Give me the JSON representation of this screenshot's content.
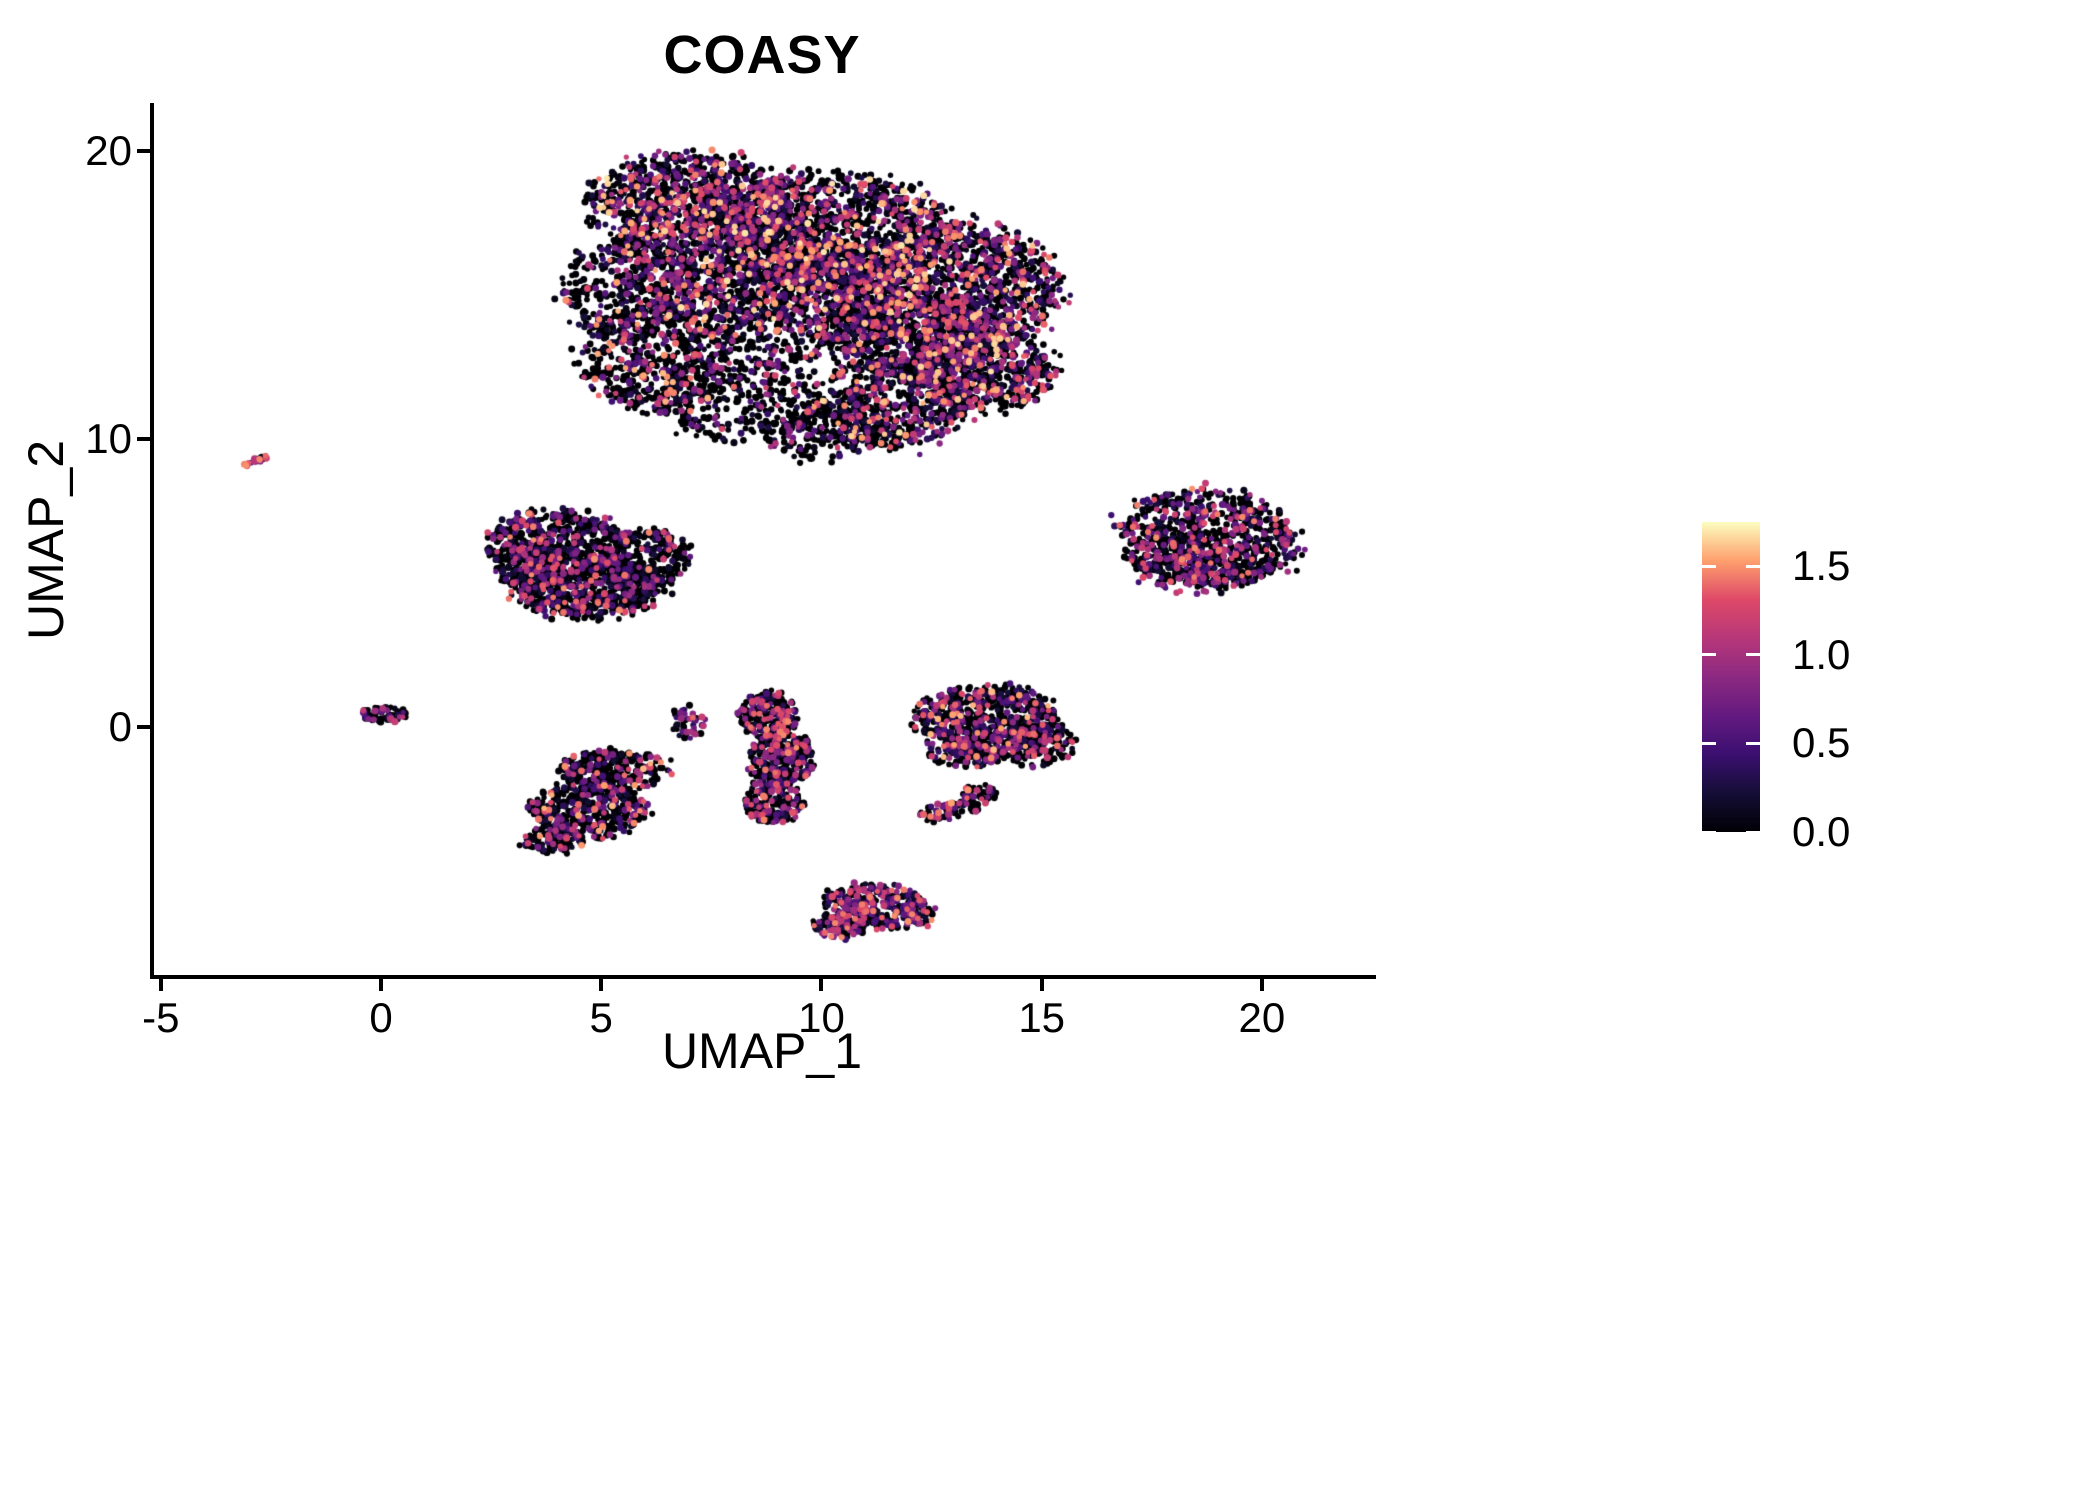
{
  "title": "COASY",
  "axes": {
    "x": {
      "label": "UMAP_1",
      "domain": [
        -5.2,
        22.5
      ],
      "ticks": [
        {
          "value": -5,
          "label": "-5"
        },
        {
          "value": 0,
          "label": "0"
        },
        {
          "value": 5,
          "label": "5"
        },
        {
          "value": 10,
          "label": "10"
        },
        {
          "value": 15,
          "label": "15"
        },
        {
          "value": 20,
          "label": "20"
        }
      ]
    },
    "y": {
      "label": "UMAP_2",
      "domain": [
        -8.6,
        21.6
      ],
      "ticks": [
        {
          "value": 0,
          "label": "0"
        },
        {
          "value": 10,
          "label": "10"
        },
        {
          "value": 20,
          "label": "20"
        }
      ]
    }
  },
  "legend": {
    "min": 0,
    "max": 1.75,
    "ticks": [
      {
        "value": 1.5,
        "label": "1.5"
      },
      {
        "value": 1.0,
        "label": "1.0"
      },
      {
        "value": 0.5,
        "label": "0.5"
      },
      {
        "value": 0.0,
        "label": "0.0"
      }
    ]
  },
  "colormap": {
    "name": "magma",
    "stops": [
      "#000004",
      "#140e36",
      "#3b0f70",
      "#641a80",
      "#8c2981",
      "#b73779",
      "#de4968",
      "#fe9f6d",
      "#fcfdbf"
    ]
  },
  "style": {
    "background": "#ffffff",
    "axis_color": "#000000",
    "point_radius_min": 2.6,
    "point_radius_max": 3.6
  },
  "chart_data": {
    "type": "scatter",
    "title": "COASY",
    "xlabel": "UMAP_1",
    "ylabel": "UMAP_2",
    "xlim": [
      -5.2,
      22.5
    ],
    "ylim": [
      -8.6,
      21.6
    ],
    "color_gene": "COASY",
    "color_range": [
      0,
      1.75
    ],
    "seed": 42,
    "clusters": [
      {
        "name": "upper-main-mass",
        "expr": {
          "p0": 0.45,
          "vmax": 1.7,
          "skew": 1.8
        },
        "blobs": [
          {
            "cx": 7.0,
            "cy": 18.2,
            "rx": 2.3,
            "ry": 1.7,
            "n": 900
          },
          {
            "cx": 10.3,
            "cy": 17.2,
            "rx": 2.6,
            "ry": 2.0,
            "n": 1150
          },
          {
            "cx": 13.0,
            "cy": 15.2,
            "rx": 2.4,
            "ry": 2.3,
            "n": 1350
          },
          {
            "cx": 9.2,
            "cy": 14.9,
            "rx": 2.6,
            "ry": 2.2,
            "n": 950
          },
          {
            "cx": 5.6,
            "cy": 15.2,
            "rx": 1.5,
            "ry": 1.7,
            "n": 320,
            "expr": {
              "p0": 0.55,
              "vmax": 1.6,
              "skew": 2.0
            }
          },
          {
            "cx": 6.2,
            "cy": 12.9,
            "rx": 1.7,
            "ry": 1.9,
            "n": 520,
            "expr": {
              "p0": 0.6,
              "vmax": 1.6,
              "skew": 1.6
            }
          },
          {
            "cx": 8.1,
            "cy": 11.4,
            "rx": 1.9,
            "ry": 1.4,
            "n": 330,
            "expr": {
              "p0": 0.72,
              "vmax": 1.5,
              "skew": 1.8
            }
          },
          {
            "cx": 11.6,
            "cy": 11.3,
            "rx": 1.8,
            "ry": 1.6,
            "n": 620
          },
          {
            "cx": 13.8,
            "cy": 12.4,
            "rx": 1.5,
            "ry": 1.4,
            "n": 520
          },
          {
            "cx": 10.0,
            "cy": 10.2,
            "rx": 1.3,
            "ry": 0.9,
            "n": 160,
            "expr": {
              "p0": 0.7,
              "vmax": 1.4,
              "skew": 1.8
            }
          },
          {
            "cx": 8.0,
            "cy": 16.3,
            "rx": 2.8,
            "ry": 2.3,
            "n": 700
          },
          {
            "cx": 12.0,
            "cy": 13.6,
            "rx": 2.0,
            "ry": 1.5,
            "n": 500
          }
        ]
      },
      {
        "name": "small-left-dash",
        "expr": {
          "p0": 0.15,
          "vmax": 1.5,
          "skew": 1.0
        },
        "blobs": [
          {
            "cx": -2.9,
            "cy": 9.2,
            "rx": 0.45,
            "ry": 0.1,
            "n": 26,
            "rot": 35
          }
        ]
      },
      {
        "name": "mid-left-cluster",
        "expr": {
          "p0": 0.58,
          "vmax": 1.5,
          "skew": 2.0
        },
        "blobs": [
          {
            "cx": 4.0,
            "cy": 6.4,
            "rx": 1.5,
            "ry": 1.1,
            "n": 520
          },
          {
            "cx": 4.7,
            "cy": 4.9,
            "rx": 1.7,
            "ry": 1.1,
            "n": 700
          },
          {
            "cx": 6.0,
            "cy": 5.9,
            "rx": 1.0,
            "ry": 1.0,
            "n": 260
          },
          {
            "cx": 3.4,
            "cy": 5.6,
            "rx": 0.8,
            "ry": 0.9,
            "n": 180
          }
        ]
      },
      {
        "name": "right-cluster",
        "expr": {
          "p0": 0.52,
          "vmax": 1.5,
          "skew": 1.3
        },
        "blobs": [
          {
            "cx": 18.8,
            "cy": 6.6,
            "rx": 2.0,
            "ry": 1.6,
            "n": 750,
            "rot": -20
          },
          {
            "cx": 18.2,
            "cy": 5.6,
            "rx": 1.3,
            "ry": 0.9,
            "n": 220,
            "rot": -20
          }
        ]
      },
      {
        "name": "tiny-origin-cluster",
        "expr": {
          "p0": 0.5,
          "vmax": 1.2,
          "skew": 1.6
        },
        "blobs": [
          {
            "cx": 0.05,
            "cy": 0.45,
            "rx": 0.5,
            "ry": 0.28,
            "n": 70
          }
        ]
      },
      {
        "name": "lower-left-cluster",
        "expr": {
          "p0": 0.6,
          "vmax": 1.6,
          "skew": 1.8
        },
        "blobs": [
          {
            "cx": 5.3,
            "cy": -1.5,
            "rx": 1.2,
            "ry": 0.7,
            "n": 300
          },
          {
            "cx": 4.7,
            "cy": -2.9,
            "rx": 1.3,
            "ry": 1.0,
            "n": 420
          },
          {
            "cx": 3.9,
            "cy": -3.9,
            "rx": 0.7,
            "ry": 0.5,
            "n": 100
          }
        ]
      },
      {
        "name": "tiny-mid-cluster",
        "expr": {
          "p0": 0.3,
          "vmax": 1.4,
          "skew": 1.2
        },
        "blobs": [
          {
            "cx": 7.0,
            "cy": 0.15,
            "rx": 0.4,
            "ry": 0.55,
            "n": 45
          }
        ]
      },
      {
        "name": "mid-vertical-cluster",
        "expr": {
          "p0": 0.5,
          "vmax": 1.5,
          "skew": 1.5
        },
        "blobs": [
          {
            "cx": 8.8,
            "cy": 0.4,
            "rx": 0.65,
            "ry": 0.85,
            "n": 240
          },
          {
            "cx": 9.1,
            "cy": -1.1,
            "rx": 0.75,
            "ry": 0.95,
            "n": 300
          },
          {
            "cx": 8.9,
            "cy": -2.6,
            "rx": 0.65,
            "ry": 0.75,
            "n": 170
          }
        ]
      },
      {
        "name": "mid-right-cluster-with-tail",
        "expr": {
          "p0": 0.55,
          "vmax": 1.6,
          "skew": 1.7
        },
        "blobs": [
          {
            "cx": 13.8,
            "cy": 0.2,
            "rx": 1.6,
            "ry": 1.25,
            "n": 720
          },
          {
            "cx": 14.9,
            "cy": -0.6,
            "rx": 0.9,
            "ry": 0.7,
            "n": 160
          },
          {
            "cx": 13.3,
            "cy": -0.9,
            "rx": 0.9,
            "ry": 0.5,
            "n": 120
          },
          {
            "cx": 13.6,
            "cy": -2.3,
            "rx": 0.4,
            "ry": 0.35,
            "n": 45
          },
          {
            "cx": 13.1,
            "cy": -2.8,
            "rx": 0.45,
            "ry": 0.3,
            "n": 45
          },
          {
            "cx": 12.6,
            "cy": -3.0,
            "rx": 0.35,
            "ry": 0.3,
            "n": 35
          }
        ]
      },
      {
        "name": "bottom-cluster",
        "expr": {
          "p0": 0.35,
          "vmax": 1.5,
          "skew": 1.2
        },
        "blobs": [
          {
            "cx": 11.3,
            "cy": -6.2,
            "rx": 1.2,
            "ry": 0.75,
            "n": 330,
            "rot": -15
          },
          {
            "cx": 10.4,
            "cy": -6.9,
            "rx": 0.6,
            "ry": 0.45,
            "n": 90
          }
        ]
      }
    ]
  }
}
